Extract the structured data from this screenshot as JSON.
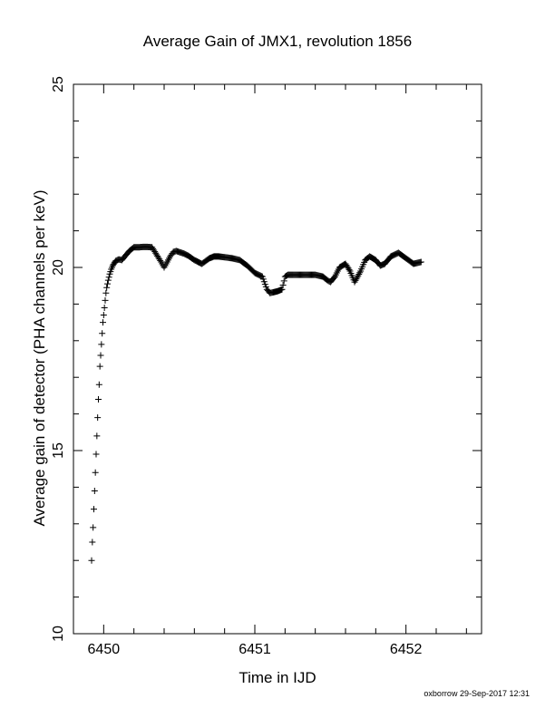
{
  "footer": "oxborrow 29-Sep-2017 12:31",
  "chart_data": {
    "type": "scatter",
    "title": "Average Gain of JMX1, revolution 1856",
    "xlabel": "Time in IJD",
    "ylabel": "Average gain of detector (PHA channels per keV)",
    "xlim": [
      6449.8,
      6452.5
    ],
    "ylim": [
      10,
      25
    ],
    "xticks": [
      6450,
      6451,
      6452
    ],
    "yticks": [
      10,
      15,
      20,
      25
    ],
    "marker": "+",
    "color": "#000000",
    "grid": false,
    "series": [
      {
        "x": [
          6449.92,
          6449.925,
          6449.93,
          6449.935,
          6449.94,
          6449.945,
          6449.95,
          6449.955,
          6449.96,
          6449.965,
          6449.97,
          6449.975,
          6449.98,
          6449.985,
          6449.99,
          6449.995,
          6450.0,
          6450.005,
          6450.01,
          6450.015,
          6450.02,
          6450.03,
          6450.04,
          6450.05,
          6450.06,
          6450.07,
          6450.08,
          6450.1,
          6450.12,
          6450.14,
          6450.17,
          6450.2,
          6450.23,
          6450.26,
          6450.29,
          6450.32,
          6450.35,
          6450.38,
          6450.4,
          6450.42,
          6450.44,
          6450.46,
          6450.48,
          6450.5,
          6450.53,
          6450.56,
          6450.6,
          6450.65,
          6450.7,
          6450.73,
          6450.76,
          6450.8,
          6450.85,
          6450.9,
          6450.95,
          6451.0,
          6451.05,
          6451.08,
          6451.1,
          6451.12,
          6451.15,
          6451.18,
          6451.2,
          6451.22,
          6451.25,
          6451.3,
          6451.35,
          6451.4,
          6451.45,
          6451.48,
          6451.5,
          6451.53,
          6451.56,
          6451.6,
          6451.63,
          6451.66,
          6451.7,
          6451.73,
          6451.76,
          6451.8,
          6451.83,
          6451.86,
          6451.9,
          6451.95,
          6452.0,
          6452.05,
          6452.1
        ],
        "y": [
          12.0,
          12.5,
          12.9,
          13.4,
          13.9,
          14.4,
          14.9,
          15.4,
          15.9,
          16.4,
          16.8,
          17.3,
          17.6,
          17.9,
          18.2,
          18.5,
          18.7,
          18.9,
          19.1,
          19.3,
          19.45,
          19.65,
          19.82,
          19.95,
          20.05,
          20.12,
          20.18,
          20.22,
          20.2,
          20.3,
          20.45,
          20.55,
          20.55,
          20.56,
          20.56,
          20.55,
          20.35,
          20.15,
          20.0,
          20.15,
          20.3,
          20.42,
          20.45,
          20.42,
          20.38,
          20.32,
          20.2,
          20.1,
          20.25,
          20.3,
          20.3,
          20.28,
          20.25,
          20.2,
          20.05,
          19.85,
          19.75,
          19.4,
          19.3,
          19.32,
          19.35,
          19.4,
          19.75,
          19.8,
          19.8,
          19.8,
          19.8,
          19.8,
          19.75,
          19.65,
          19.6,
          19.75,
          20.0,
          20.1,
          19.9,
          19.6,
          19.9,
          20.2,
          20.3,
          20.2,
          20.05,
          20.1,
          20.3,
          20.4,
          20.25,
          20.1,
          20.15
        ]
      }
    ]
  }
}
